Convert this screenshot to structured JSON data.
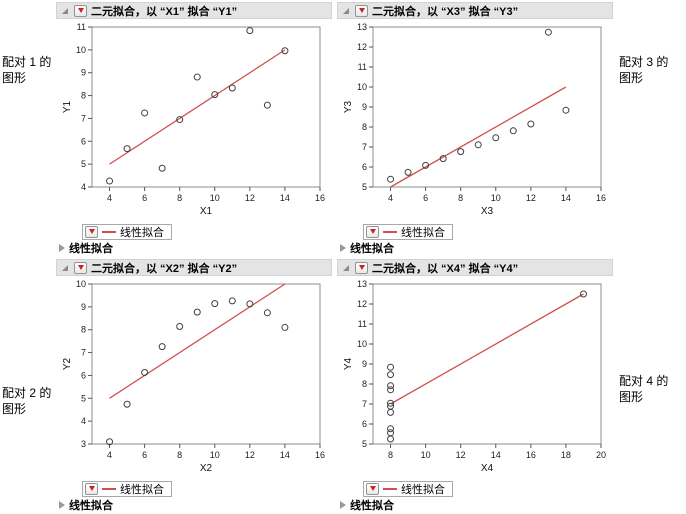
{
  "colors": {
    "fit_line": "#d05050",
    "accent_red": "#cc2222",
    "title_bar_bg": "#e4e4e4",
    "point_stroke": "#404040"
  },
  "annotations": [
    {
      "id": "pair1",
      "text": "配对 1 的\n图形"
    },
    {
      "id": "pair3",
      "text": "配对 3 的\n图形"
    },
    {
      "id": "pair2",
      "text": "配对 2 的\n图形"
    },
    {
      "id": "pair4",
      "text": "配对 4 的\n图形"
    }
  ],
  "panels": [
    {
      "title": "二元拟合，以 “X1” 拟合 “Y1”",
      "legend_label": "线性拟合",
      "section_label": "线性拟合"
    },
    {
      "title": "二元拟合，以 “X3” 拟合 “Y3”",
      "legend_label": "线性拟合",
      "section_label": "线性拟合"
    },
    {
      "title": "二元拟合，以 “X2” 拟合 “Y2”",
      "legend_label": "线性拟合",
      "section_label": "线性拟合"
    },
    {
      "title": "二元拟合，以 “X4” 拟合 “Y4”",
      "legend_label": "线性拟合",
      "section_label": "线性拟合"
    }
  ],
  "chart_data": [
    {
      "type": "scatter",
      "title": "二元拟合，以 “X1” 拟合 “Y1”",
      "xlabel": "X1",
      "ylabel": "Y1",
      "xlim": [
        3,
        16
      ],
      "ylim": [
        4,
        11
      ],
      "xticks": [
        4,
        6,
        8,
        10,
        12,
        14,
        16
      ],
      "yticks": [
        4,
        5,
        6,
        7,
        8,
        9,
        10,
        11
      ],
      "points": [
        [
          10,
          8.04
        ],
        [
          8,
          6.95
        ],
        [
          13,
          7.58
        ],
        [
          9,
          8.81
        ],
        [
          11,
          8.33
        ],
        [
          14,
          9.96
        ],
        [
          6,
          7.24
        ],
        [
          4,
          4.26
        ],
        [
          12,
          10.84
        ],
        [
          7,
          4.82
        ],
        [
          5,
          5.68
        ]
      ],
      "fit_line": {
        "name": "线性拟合",
        "x": [
          4,
          14
        ],
        "y": [
          5,
          10
        ]
      },
      "grid": false,
      "legend_position": "below"
    },
    {
      "type": "scatter",
      "title": "二元拟合，以 “X3” 拟合 “Y3”",
      "xlabel": "X3",
      "ylabel": "Y3",
      "xlim": [
        3,
        16
      ],
      "ylim": [
        5,
        13
      ],
      "xticks": [
        4,
        6,
        8,
        10,
        12,
        14,
        16
      ],
      "yticks": [
        5,
        6,
        7,
        8,
        9,
        10,
        11,
        12,
        13
      ],
      "points": [
        [
          10,
          7.46
        ],
        [
          8,
          6.77
        ],
        [
          13,
          12.74
        ],
        [
          9,
          7.11
        ],
        [
          11,
          7.81
        ],
        [
          14,
          8.84
        ],
        [
          6,
          6.08
        ],
        [
          4,
          5.39
        ],
        [
          12,
          8.15
        ],
        [
          7,
          6.42
        ],
        [
          5,
          5.73
        ]
      ],
      "fit_line": {
        "name": "线性拟合",
        "x": [
          4,
          14
        ],
        "y": [
          5,
          10
        ]
      },
      "grid": false,
      "legend_position": "below"
    },
    {
      "type": "scatter",
      "title": "二元拟合，以 “X2” 拟合 “Y2”",
      "xlabel": "X2",
      "ylabel": "Y2",
      "xlim": [
        3,
        16
      ],
      "ylim": [
        3,
        10
      ],
      "xticks": [
        4,
        6,
        8,
        10,
        12,
        14,
        16
      ],
      "yticks": [
        3,
        4,
        5,
        6,
        7,
        8,
        9,
        10
      ],
      "points": [
        [
          10,
          9.14
        ],
        [
          8,
          8.14
        ],
        [
          13,
          8.74
        ],
        [
          9,
          8.77
        ],
        [
          11,
          9.26
        ],
        [
          14,
          8.1
        ],
        [
          6,
          6.13
        ],
        [
          4,
          3.1
        ],
        [
          12,
          9.13
        ],
        [
          7,
          7.26
        ],
        [
          5,
          4.74
        ]
      ],
      "fit_line": {
        "name": "线性拟合",
        "x": [
          4,
          14
        ],
        "y": [
          5,
          10
        ]
      },
      "grid": false,
      "legend_position": "below"
    },
    {
      "type": "scatter",
      "title": "二元拟合，以 “X4” 拟合 “Y4”",
      "xlabel": "X4",
      "ylabel": "Y4",
      "xlim": [
        7,
        20
      ],
      "ylim": [
        5,
        13
      ],
      "xticks": [
        8,
        10,
        12,
        14,
        16,
        18,
        20
      ],
      "yticks": [
        5,
        6,
        7,
        8,
        9,
        10,
        11,
        12,
        13
      ],
      "points": [
        [
          8,
          6.58
        ],
        [
          8,
          5.76
        ],
        [
          8,
          7.71
        ],
        [
          8,
          8.84
        ],
        [
          8,
          8.47
        ],
        [
          8,
          7.04
        ],
        [
          8,
          5.25
        ],
        [
          19,
          12.5
        ],
        [
          8,
          5.56
        ],
        [
          8,
          7.91
        ],
        [
          8,
          6.89
        ]
      ],
      "fit_line": {
        "name": "线性拟合",
        "x": [
          8,
          19
        ],
        "y": [
          7,
          12.5
        ]
      },
      "grid": false,
      "legend_position": "below"
    }
  ]
}
